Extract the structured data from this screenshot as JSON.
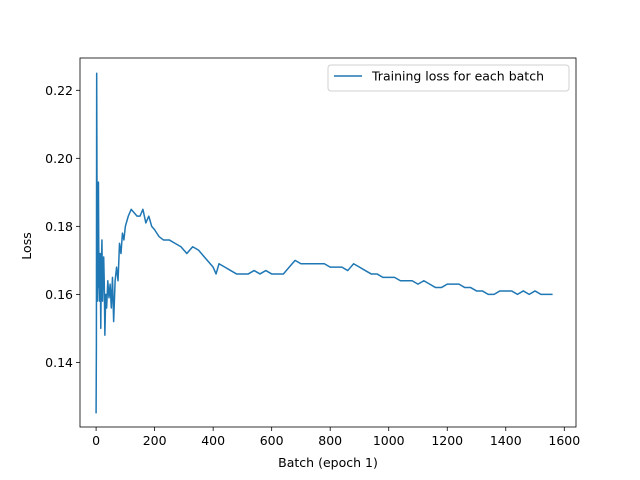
{
  "chart_data": {
    "type": "line",
    "title": "",
    "xlabel": "Batch (epoch 1)",
    "ylabel": "Loss",
    "xlim": [
      -55,
      1640
    ],
    "ylim": [
      0.121,
      0.2295
    ],
    "x_ticks": [
      0,
      200,
      400,
      600,
      800,
      1000,
      1200,
      1400,
      1600
    ],
    "y_ticks": [
      0.14,
      0.16,
      0.18,
      0.2,
      0.22
    ],
    "x_tick_labels": [
      "0",
      "200",
      "400",
      "600",
      "800",
      "1000",
      "1200",
      "1400",
      "1600"
    ],
    "y_tick_labels": [
      "0.14",
      "0.16",
      "0.18",
      "0.20",
      "0.22"
    ],
    "grid": false,
    "legend_position": "top-right",
    "series": [
      {
        "name": "Training loss for each batch",
        "color": "#1f77b4",
        "x": [
          0,
          1,
          2,
          3,
          4,
          5,
          6,
          7,
          8,
          9,
          10,
          12,
          14,
          16,
          18,
          20,
          22,
          24,
          26,
          28,
          30,
          33,
          36,
          40,
          44,
          48,
          52,
          56,
          60,
          65,
          70,
          75,
          80,
          85,
          90,
          95,
          100,
          110,
          120,
          130,
          140,
          150,
          160,
          170,
          180,
          190,
          200,
          215,
          230,
          250,
          270,
          290,
          310,
          330,
          350,
          370,
          390,
          400,
          410,
          420,
          440,
          460,
          480,
          500,
          520,
          540,
          560,
          580,
          600,
          620,
          640,
          660,
          680,
          700,
          720,
          740,
          760,
          780,
          800,
          820,
          840,
          860,
          880,
          900,
          920,
          940,
          960,
          980,
          1000,
          1020,
          1040,
          1060,
          1080,
          1100,
          1120,
          1140,
          1160,
          1180,
          1200,
          1220,
          1240,
          1260,
          1280,
          1300,
          1320,
          1340,
          1360,
          1380,
          1400,
          1420,
          1440,
          1460,
          1480,
          1500,
          1520,
          1540,
          1560
        ],
        "values": [
          0.125,
          0.145,
          0.225,
          0.195,
          0.17,
          0.158,
          0.18,
          0.162,
          0.193,
          0.175,
          0.165,
          0.158,
          0.172,
          0.15,
          0.168,
          0.176,
          0.158,
          0.165,
          0.171,
          0.163,
          0.148,
          0.16,
          0.156,
          0.164,
          0.159,
          0.163,
          0.156,
          0.165,
          0.152,
          0.164,
          0.168,
          0.164,
          0.175,
          0.172,
          0.178,
          0.176,
          0.18,
          0.183,
          0.185,
          0.184,
          0.183,
          0.183,
          0.185,
          0.181,
          0.183,
          0.18,
          0.179,
          0.177,
          0.176,
          0.176,
          0.175,
          0.174,
          0.172,
          0.174,
          0.173,
          0.171,
          0.169,
          0.168,
          0.166,
          0.169,
          0.168,
          0.167,
          0.166,
          0.166,
          0.166,
          0.167,
          0.166,
          0.167,
          0.166,
          0.166,
          0.166,
          0.168,
          0.17,
          0.169,
          0.169,
          0.169,
          0.169,
          0.169,
          0.168,
          0.168,
          0.168,
          0.167,
          0.169,
          0.168,
          0.167,
          0.166,
          0.166,
          0.165,
          0.165,
          0.165,
          0.164,
          0.164,
          0.164,
          0.163,
          0.164,
          0.163,
          0.162,
          0.162,
          0.163,
          0.163,
          0.163,
          0.162,
          0.162,
          0.161,
          0.161,
          0.16,
          0.16,
          0.161,
          0.161,
          0.161,
          0.16,
          0.161,
          0.16,
          0.161,
          0.16,
          0.16,
          0.16
        ]
      }
    ]
  }
}
